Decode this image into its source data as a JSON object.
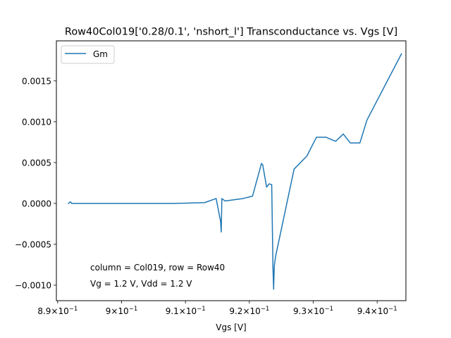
{
  "chart_data": {
    "type": "line",
    "title": "Row40Col019['0.28/0.1', 'nshort_l'] Transconductance vs. Vgs [V]",
    "xlabel": "Vgs [V]",
    "ylabel": "",
    "xlim": [
      0.8898,
      0.9445
    ],
    "ylim": [
      -0.00119,
      0.00199
    ],
    "x_ticks": [
      {
        "value": 0.89,
        "base": "8.9×10",
        "exp": "−1"
      },
      {
        "value": 0.9,
        "base": "9×10",
        "exp": "−1"
      },
      {
        "value": 0.91,
        "base": "9.1×10",
        "exp": "−1"
      },
      {
        "value": 0.92,
        "base": "9.2×10",
        "exp": "−1"
      },
      {
        "value": 0.93,
        "base": "9.3×10",
        "exp": "−1"
      },
      {
        "value": 0.94,
        "base": "9.4×10",
        "exp": "−1"
      }
    ],
    "y_ticks": [
      {
        "value": 0.0015,
        "label": "0.0015"
      },
      {
        "value": 0.001,
        "label": "0.0010"
      },
      {
        "value": 0.0005,
        "label": "0.0005"
      },
      {
        "value": 0.0,
        "label": "0.0000"
      },
      {
        "value": -0.0005,
        "label": "−0.0005"
      },
      {
        "value": -0.001,
        "label": "−0.0010"
      }
    ],
    "grid": false,
    "legend_position": "top-left",
    "series": [
      {
        "name": "Gm",
        "color": "#1f77b4",
        "x": [
          0.8917,
          0.892,
          0.8922,
          0.893,
          0.9,
          0.908,
          0.913,
          0.9148,
          0.9155,
          0.9156,
          0.9157,
          0.9162,
          0.919,
          0.9205,
          0.9219,
          0.9221,
          0.9227,
          0.9231,
          0.9235,
          0.9237,
          0.9238,
          0.9239,
          0.9241,
          0.927,
          0.929,
          0.9305,
          0.932,
          0.9335,
          0.9347,
          0.9358,
          0.9373,
          0.9384,
          0.9438
        ],
        "y": [
          0.0,
          2e-05,
          0.0,
          0.0,
          0.0,
          0.0,
          1e-05,
          6e-05,
          -0.00022,
          -0.00035,
          6e-05,
          3e-05,
          6e-05,
          9e-05,
          0.00049,
          0.00047,
          0.0002,
          0.00024,
          0.00023,
          -0.0008,
          -0.00105,
          -0.00077,
          -0.00065,
          0.00042,
          0.00058,
          0.00081,
          0.00081,
          0.00076,
          0.00085,
          0.00074,
          0.00074,
          0.00102,
          0.00183
        ]
      }
    ],
    "annotations": [
      "column = Col019, row = Row40",
      "Vg = 1.2 V, Vdd = 1.2 V"
    ]
  }
}
